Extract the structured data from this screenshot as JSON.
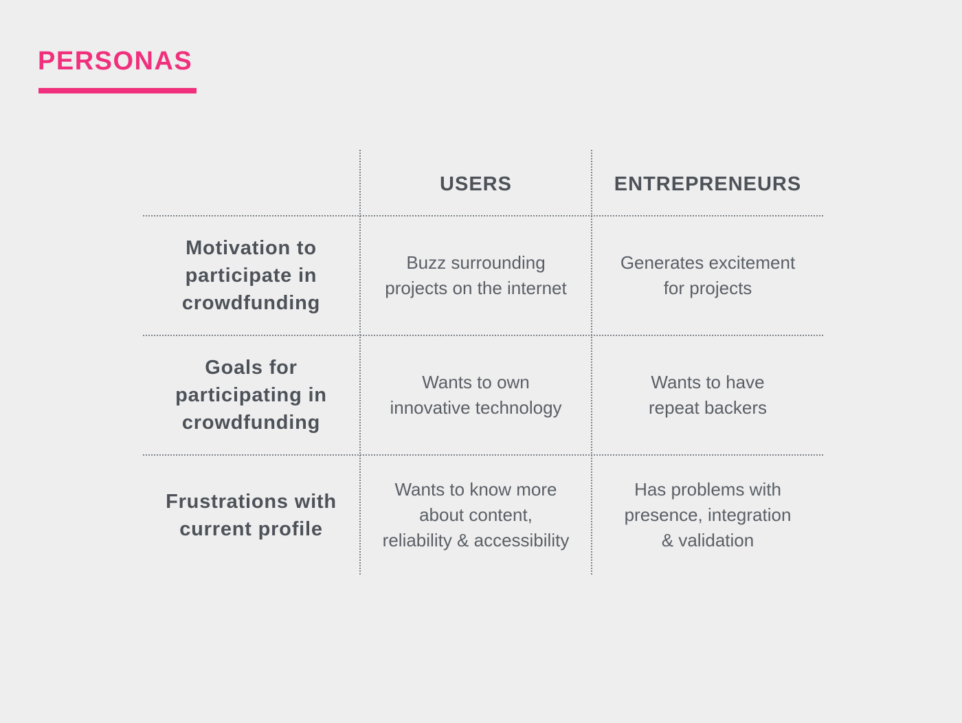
{
  "page": {
    "title": "PERSONAS",
    "accent_color": "#f0307c"
  },
  "table": {
    "columns": [
      "",
      "USERS",
      "ENTREPRENEURS"
    ],
    "rows": [
      {
        "label": "Motivation to\nparticipate in\ncrowdfunding",
        "users": "Buzz surrounding\nprojects on the internet",
        "entrepreneurs": "Generates excitement\nfor projects"
      },
      {
        "label": "Goals for\nparticipating in\ncrowdfunding",
        "users": "Wants to own\ninnovative technology",
        "entrepreneurs": "Wants to have\nrepeat backers"
      },
      {
        "label": "Frustrations with\ncurrent profile",
        "users": "Wants to know more\nabout content,\nreliability & accessibility",
        "entrepreneurs": "Has problems with\npresence, integration\n& validation"
      }
    ]
  }
}
